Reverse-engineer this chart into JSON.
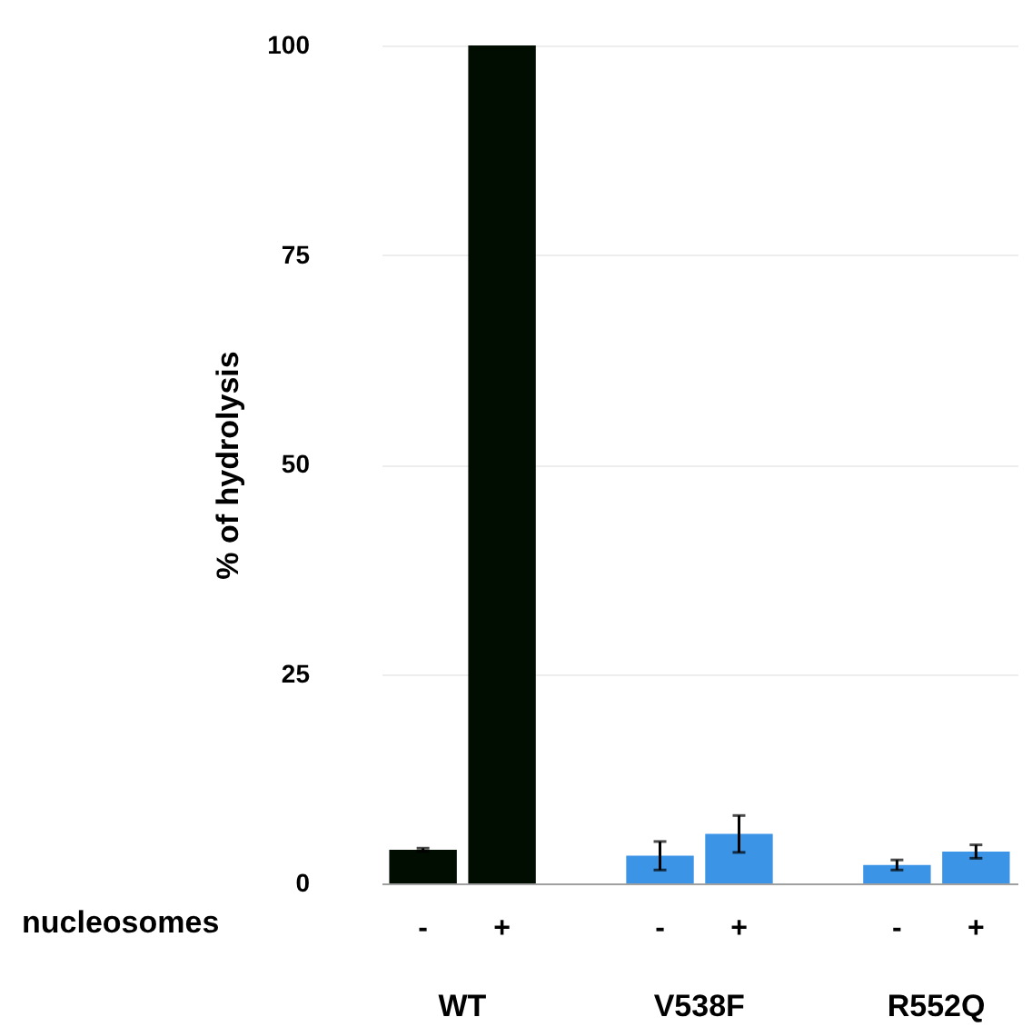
{
  "chart_data": {
    "type": "bar",
    "ylabel": "% of hydrolysis",
    "categories": [
      "-",
      "+",
      "-",
      "+",
      "-",
      "+"
    ],
    "values": [
      4.0,
      100,
      3.3,
      5.9,
      2.2,
      3.8
    ],
    "errors": [
      0.2,
      null,
      1.7,
      2.2,
      0.6,
      0.8
    ],
    "colors": [
      "#020d02",
      "#020d02",
      "#3b94e6",
      "#3b94e6",
      "#3b94e6",
      "#3b94e6"
    ],
    "ylim": [
      0,
      100
    ],
    "yticks": [
      0,
      25,
      50,
      75,
      100
    ],
    "grid": "y",
    "annotations": [
      "nucleosomes",
      "WT",
      "V538F",
      "R552Q"
    ]
  }
}
